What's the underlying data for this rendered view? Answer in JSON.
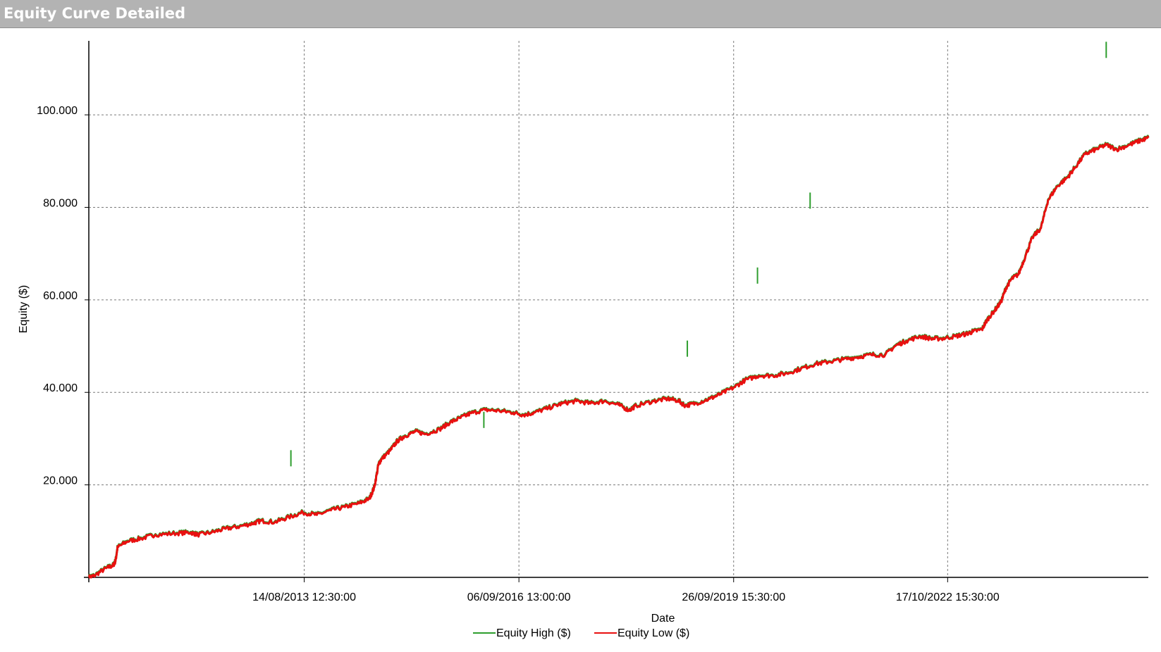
{
  "window": {
    "title": "Equity Curve Detailed"
  },
  "chart_data": {
    "type": "line",
    "title": "Equity Curve Detailed",
    "xlabel": "Date",
    "ylabel": "Equity ($)",
    "x_ticks": [
      {
        "label": "14/08/2013 12:30:00",
        "year": 2013.62
      },
      {
        "label": "06/09/2016 13:00:00",
        "year": 2016.68
      },
      {
        "label": "26/09/2019 15:30:00",
        "year": 2019.74
      },
      {
        "label": "17/10/2022 15:30:00",
        "year": 2022.79
      }
    ],
    "y_ticks": [
      {
        "label": "20.000",
        "value": 20000
      },
      {
        "label": "40.000",
        "value": 40000
      },
      {
        "label": "60.000",
        "value": 60000
      },
      {
        "label": "80.000",
        "value": 80000
      },
      {
        "label": "100.000",
        "value": 100000
      }
    ],
    "xlim": [
      2010.55,
      2025.65
    ],
    "ylim": [
      0,
      116000
    ],
    "grid": true,
    "legend_position": "bottom-center",
    "series": [
      {
        "name": "Equity High ($)",
        "color": "#2e9e2e",
        "spikes": [
          [
            2013.43,
            27500
          ],
          [
            2016.18,
            35800
          ],
          [
            2019.08,
            51200
          ],
          [
            2020.08,
            67000
          ],
          [
            2020.83,
            83200
          ],
          [
            2025.05,
            115800
          ]
        ]
      },
      {
        "name": "Equity Low ($)",
        "color": "#e81010",
        "points": [
          [
            2010.55,
            0
          ],
          [
            2010.62,
            300
          ],
          [
            2010.8,
            2000
          ],
          [
            2010.9,
            2600
          ],
          [
            2010.93,
            3500
          ],
          [
            2010.96,
            6500
          ],
          [
            2011.1,
            7800
          ],
          [
            2011.3,
            8400
          ],
          [
            2011.5,
            9200
          ],
          [
            2011.8,
            9500
          ],
          [
            2012.0,
            9700
          ],
          [
            2012.1,
            9200
          ],
          [
            2012.3,
            9700
          ],
          [
            2012.5,
            10500
          ],
          [
            2012.7,
            11000
          ],
          [
            2012.9,
            11700
          ],
          [
            2013.0,
            12200
          ],
          [
            2013.2,
            11900
          ],
          [
            2013.4,
            13000
          ],
          [
            2013.6,
            14000
          ],
          [
            2013.8,
            13500
          ],
          [
            2014.0,
            14500
          ],
          [
            2014.2,
            15200
          ],
          [
            2014.4,
            16000
          ],
          [
            2014.55,
            17000
          ],
          [
            2014.62,
            19500
          ],
          [
            2014.68,
            24500
          ],
          [
            2014.72,
            25500
          ],
          [
            2014.85,
            27500
          ],
          [
            2014.95,
            29500
          ],
          [
            2015.05,
            30500
          ],
          [
            2015.2,
            31500
          ],
          [
            2015.35,
            31000
          ],
          [
            2015.55,
            32000
          ],
          [
            2015.7,
            33500
          ],
          [
            2015.85,
            34500
          ],
          [
            2016.0,
            35500
          ],
          [
            2016.2,
            36200
          ],
          [
            2016.4,
            36000
          ],
          [
            2016.6,
            35600
          ],
          [
            2016.75,
            35100
          ],
          [
            2016.9,
            35600
          ],
          [
            2017.1,
            36600
          ],
          [
            2017.3,
            37600
          ],
          [
            2017.5,
            38100
          ],
          [
            2017.7,
            37600
          ],
          [
            2017.9,
            38100
          ],
          [
            2018.1,
            37300
          ],
          [
            2018.25,
            36100
          ],
          [
            2018.35,
            37100
          ],
          [
            2018.6,
            38100
          ],
          [
            2018.8,
            38600
          ],
          [
            2018.95,
            38200
          ],
          [
            2019.05,
            37100
          ],
          [
            2019.2,
            37600
          ],
          [
            2019.4,
            38600
          ],
          [
            2019.55,
            39600
          ],
          [
            2019.75,
            41100
          ],
          [
            2019.9,
            42600
          ],
          [
            2020.1,
            43600
          ],
          [
            2020.3,
            43600
          ],
          [
            2020.5,
            44100
          ],
          [
            2020.7,
            45100
          ],
          [
            2020.9,
            46100
          ],
          [
            2021.1,
            46600
          ],
          [
            2021.3,
            47100
          ],
          [
            2021.5,
            47600
          ],
          [
            2021.7,
            48100
          ],
          [
            2021.9,
            48100
          ],
          [
            2022.05,
            50100
          ],
          [
            2022.2,
            51100
          ],
          [
            2022.4,
            52100
          ],
          [
            2022.55,
            51600
          ],
          [
            2022.7,
            51600
          ],
          [
            2022.9,
            52100
          ],
          [
            2023.05,
            52600
          ],
          [
            2023.15,
            53100
          ],
          [
            2023.28,
            53600
          ],
          [
            2023.35,
            55600
          ],
          [
            2023.45,
            57500
          ],
          [
            2023.55,
            59500
          ],
          [
            2023.62,
            62500
          ],
          [
            2023.7,
            64500
          ],
          [
            2023.8,
            65500
          ],
          [
            2023.9,
            69500
          ],
          [
            2024.0,
            73500
          ],
          [
            2024.12,
            75500
          ],
          [
            2024.22,
            81500
          ],
          [
            2024.35,
            84500
          ],
          [
            2024.5,
            86500
          ],
          [
            2024.6,
            88500
          ],
          [
            2024.75,
            91500
          ],
          [
            2024.9,
            92500
          ],
          [
            2025.05,
            93500
          ],
          [
            2025.2,
            92500
          ],
          [
            2025.38,
            93500
          ],
          [
            2025.55,
            94500
          ],
          [
            2025.65,
            95000
          ]
        ]
      }
    ]
  }
}
